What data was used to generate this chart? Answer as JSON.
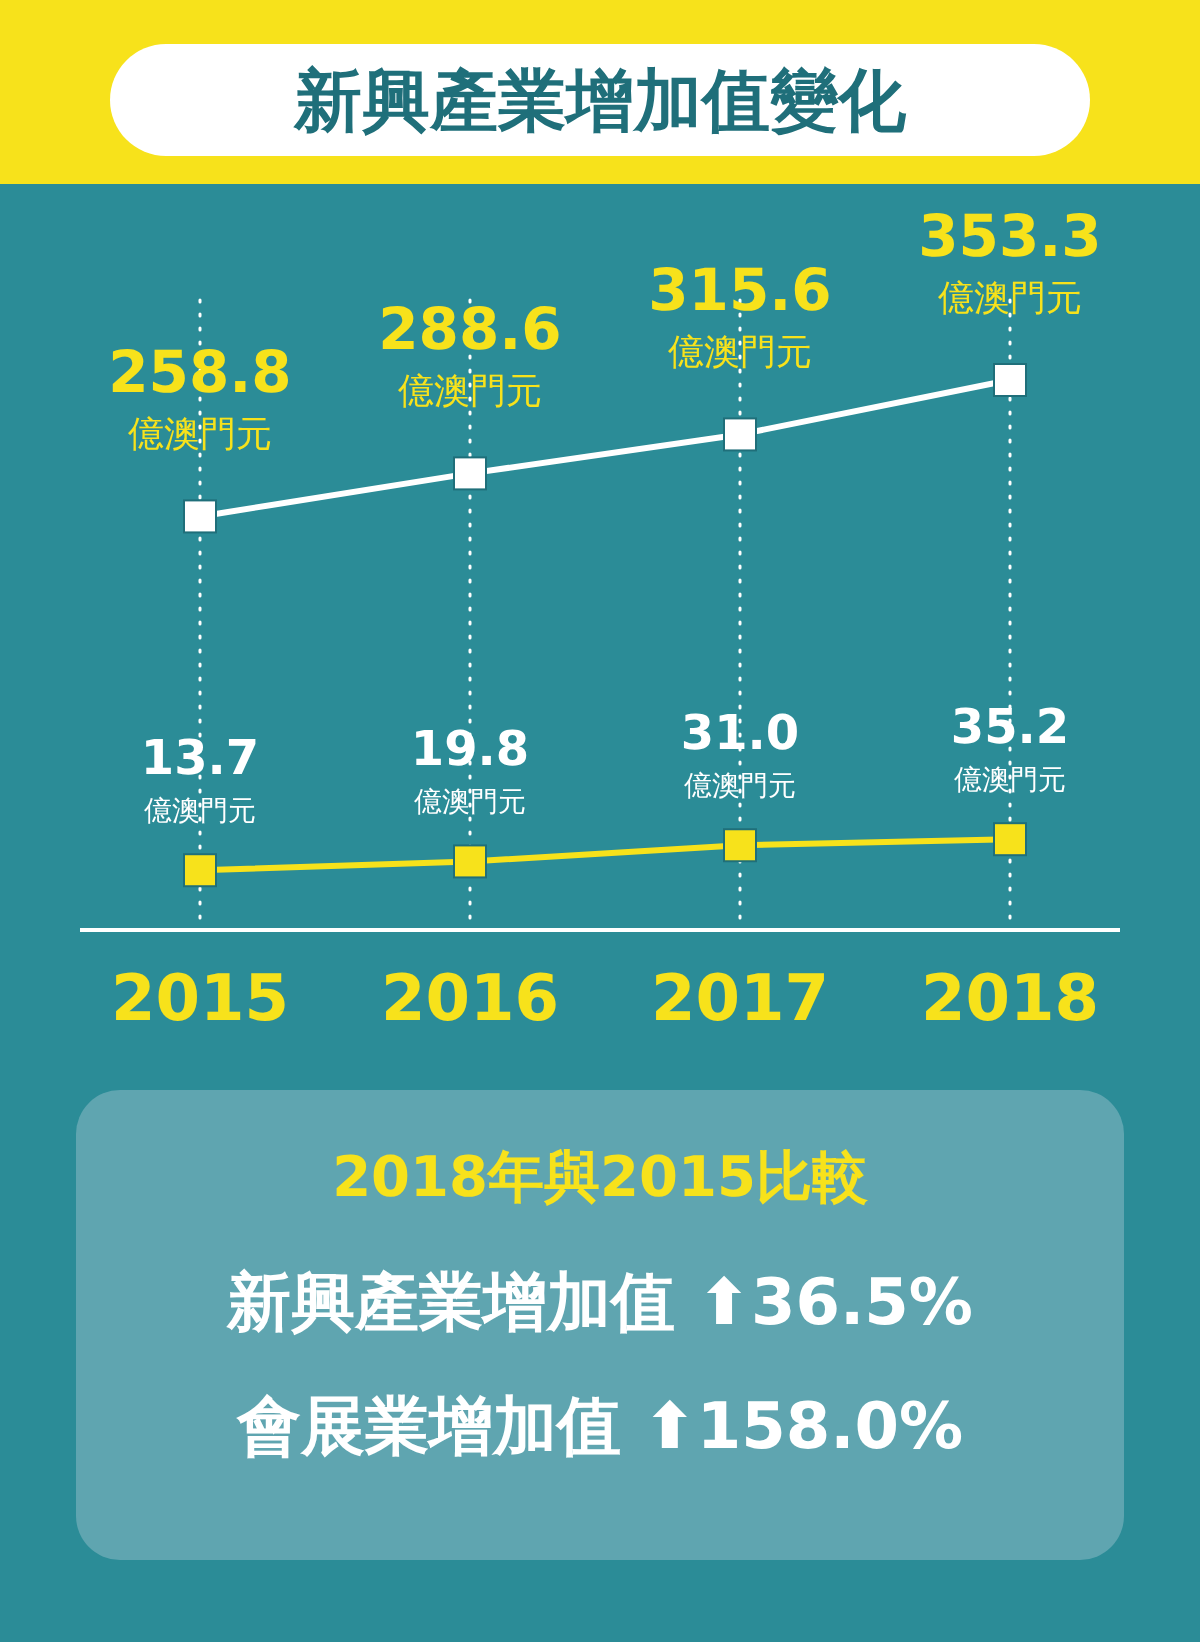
{
  "chart_data": {
    "type": "line",
    "title": "新興產業增加值變化",
    "categories": [
      "2015",
      "2016",
      "2017",
      "2018"
    ],
    "series": [
      {
        "color": "#ffffff",
        "values": [
          258.8,
          288.6,
          315.6,
          353.3
        ],
        "value_labels": [
          "258.8",
          "288.6",
          "315.6",
          "353.3"
        ]
      },
      {
        "color": "#f7e21b",
        "values": [
          13.7,
          19.8,
          31.0,
          35.2
        ],
        "value_labels": [
          "13.7",
          "19.8",
          "31.0",
          "35.2"
        ]
      }
    ],
    "marker": "square",
    "grid": "x",
    "annotations": [
      {
        "text": "億澳門元",
        "x": "2015",
        "y": 258.8
      },
      {
        "text": "億澳門元",
        "x": "2016",
        "y": 288.6
      },
      {
        "text": "億澳門元",
        "x": "2017",
        "y": 315.6
      },
      {
        "text": "億澳門元",
        "x": "2018",
        "y": 353.3
      },
      {
        "text": "億澳門元",
        "x": "2015",
        "y": 13.7
      },
      {
        "text": "億澳門元",
        "x": "2016",
        "y": 19.8
      },
      {
        "text": "億澳門元",
        "x": "2017",
        "y": 31.0
      },
      {
        "text": "億澳門元",
        "x": "2018",
        "y": 35.2
      },
      "2018年與2015比較",
      "新興產業增加值 ⬆36.5%",
      "會展業增加值 ⬆158.0%"
    ]
  }
}
